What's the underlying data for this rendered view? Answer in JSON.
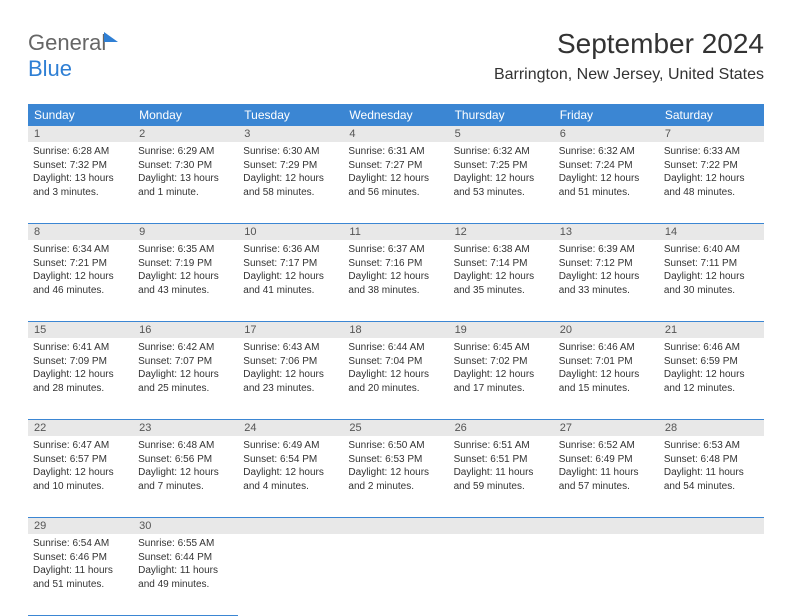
{
  "logo": {
    "text1": "General",
    "text2": "Blue"
  },
  "title": "September 2024",
  "location": "Barrington, New Jersey, United States",
  "weekdays": [
    "Sunday",
    "Monday",
    "Tuesday",
    "Wednesday",
    "Thursday",
    "Friday",
    "Saturday"
  ],
  "colors": {
    "header_bg": "#3b86d3",
    "header_text": "#ffffff",
    "daynum_bg": "#e8e8e8",
    "border": "#3b86d3",
    "logo_gray": "#666666",
    "logo_blue": "#2f7fd4"
  },
  "weeks": [
    [
      {
        "num": "1",
        "sunrise": "Sunrise: 6:28 AM",
        "sunset": "Sunset: 7:32 PM",
        "daylight": "Daylight: 13 hours and 3 minutes."
      },
      {
        "num": "2",
        "sunrise": "Sunrise: 6:29 AM",
        "sunset": "Sunset: 7:30 PM",
        "daylight": "Daylight: 13 hours and 1 minute."
      },
      {
        "num": "3",
        "sunrise": "Sunrise: 6:30 AM",
        "sunset": "Sunset: 7:29 PM",
        "daylight": "Daylight: 12 hours and 58 minutes."
      },
      {
        "num": "4",
        "sunrise": "Sunrise: 6:31 AM",
        "sunset": "Sunset: 7:27 PM",
        "daylight": "Daylight: 12 hours and 56 minutes."
      },
      {
        "num": "5",
        "sunrise": "Sunrise: 6:32 AM",
        "sunset": "Sunset: 7:25 PM",
        "daylight": "Daylight: 12 hours and 53 minutes."
      },
      {
        "num": "6",
        "sunrise": "Sunrise: 6:32 AM",
        "sunset": "Sunset: 7:24 PM",
        "daylight": "Daylight: 12 hours and 51 minutes."
      },
      {
        "num": "7",
        "sunrise": "Sunrise: 6:33 AM",
        "sunset": "Sunset: 7:22 PM",
        "daylight": "Daylight: 12 hours and 48 minutes."
      }
    ],
    [
      {
        "num": "8",
        "sunrise": "Sunrise: 6:34 AM",
        "sunset": "Sunset: 7:21 PM",
        "daylight": "Daylight: 12 hours and 46 minutes."
      },
      {
        "num": "9",
        "sunrise": "Sunrise: 6:35 AM",
        "sunset": "Sunset: 7:19 PM",
        "daylight": "Daylight: 12 hours and 43 minutes."
      },
      {
        "num": "10",
        "sunrise": "Sunrise: 6:36 AM",
        "sunset": "Sunset: 7:17 PM",
        "daylight": "Daylight: 12 hours and 41 minutes."
      },
      {
        "num": "11",
        "sunrise": "Sunrise: 6:37 AM",
        "sunset": "Sunset: 7:16 PM",
        "daylight": "Daylight: 12 hours and 38 minutes."
      },
      {
        "num": "12",
        "sunrise": "Sunrise: 6:38 AM",
        "sunset": "Sunset: 7:14 PM",
        "daylight": "Daylight: 12 hours and 35 minutes."
      },
      {
        "num": "13",
        "sunrise": "Sunrise: 6:39 AM",
        "sunset": "Sunset: 7:12 PM",
        "daylight": "Daylight: 12 hours and 33 minutes."
      },
      {
        "num": "14",
        "sunrise": "Sunrise: 6:40 AM",
        "sunset": "Sunset: 7:11 PM",
        "daylight": "Daylight: 12 hours and 30 minutes."
      }
    ],
    [
      {
        "num": "15",
        "sunrise": "Sunrise: 6:41 AM",
        "sunset": "Sunset: 7:09 PM",
        "daylight": "Daylight: 12 hours and 28 minutes."
      },
      {
        "num": "16",
        "sunrise": "Sunrise: 6:42 AM",
        "sunset": "Sunset: 7:07 PM",
        "daylight": "Daylight: 12 hours and 25 minutes."
      },
      {
        "num": "17",
        "sunrise": "Sunrise: 6:43 AM",
        "sunset": "Sunset: 7:06 PM",
        "daylight": "Daylight: 12 hours and 23 minutes."
      },
      {
        "num": "18",
        "sunrise": "Sunrise: 6:44 AM",
        "sunset": "Sunset: 7:04 PM",
        "daylight": "Daylight: 12 hours and 20 minutes."
      },
      {
        "num": "19",
        "sunrise": "Sunrise: 6:45 AM",
        "sunset": "Sunset: 7:02 PM",
        "daylight": "Daylight: 12 hours and 17 minutes."
      },
      {
        "num": "20",
        "sunrise": "Sunrise: 6:46 AM",
        "sunset": "Sunset: 7:01 PM",
        "daylight": "Daylight: 12 hours and 15 minutes."
      },
      {
        "num": "21",
        "sunrise": "Sunrise: 6:46 AM",
        "sunset": "Sunset: 6:59 PM",
        "daylight": "Daylight: 12 hours and 12 minutes."
      }
    ],
    [
      {
        "num": "22",
        "sunrise": "Sunrise: 6:47 AM",
        "sunset": "Sunset: 6:57 PM",
        "daylight": "Daylight: 12 hours and 10 minutes."
      },
      {
        "num": "23",
        "sunrise": "Sunrise: 6:48 AM",
        "sunset": "Sunset: 6:56 PM",
        "daylight": "Daylight: 12 hours and 7 minutes."
      },
      {
        "num": "24",
        "sunrise": "Sunrise: 6:49 AM",
        "sunset": "Sunset: 6:54 PM",
        "daylight": "Daylight: 12 hours and 4 minutes."
      },
      {
        "num": "25",
        "sunrise": "Sunrise: 6:50 AM",
        "sunset": "Sunset: 6:53 PM",
        "daylight": "Daylight: 12 hours and 2 minutes."
      },
      {
        "num": "26",
        "sunrise": "Sunrise: 6:51 AM",
        "sunset": "Sunset: 6:51 PM",
        "daylight": "Daylight: 11 hours and 59 minutes."
      },
      {
        "num": "27",
        "sunrise": "Sunrise: 6:52 AM",
        "sunset": "Sunset: 6:49 PM",
        "daylight": "Daylight: 11 hours and 57 minutes."
      },
      {
        "num": "28",
        "sunrise": "Sunrise: 6:53 AM",
        "sunset": "Sunset: 6:48 PM",
        "daylight": "Daylight: 11 hours and 54 minutes."
      }
    ],
    [
      {
        "num": "29",
        "sunrise": "Sunrise: 6:54 AM",
        "sunset": "Sunset: 6:46 PM",
        "daylight": "Daylight: 11 hours and 51 minutes."
      },
      {
        "num": "30",
        "sunrise": "Sunrise: 6:55 AM",
        "sunset": "Sunset: 6:44 PM",
        "daylight": "Daylight: 11 hours and 49 minutes."
      },
      null,
      null,
      null,
      null,
      null
    ]
  ]
}
